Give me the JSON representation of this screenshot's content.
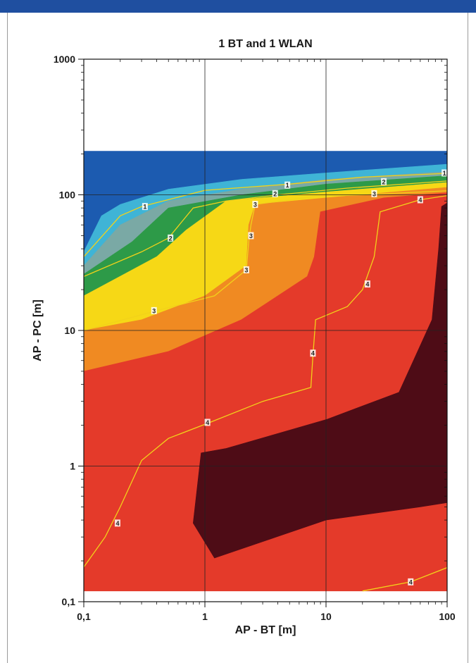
{
  "chart_data": {
    "type": "heatmap",
    "title": "1 BT and 1 WLAN",
    "xlabel": "AP - BT [m]",
    "ylabel": "AP - PC [m]",
    "xscale": "log",
    "yscale": "log",
    "xlim": [
      0.1,
      100
    ],
    "ylim": [
      0.1,
      1000
    ],
    "xticks": [
      "0,1",
      "1",
      "10",
      "100"
    ],
    "yticks": [
      "0,1",
      "1",
      "10",
      "100",
      "1000"
    ],
    "grid": true,
    "data_region_y_max": 210,
    "regions": [
      {
        "name": "dark-blue",
        "color": "#1c5bb0",
        "points": [
          [
            0.1,
            210
          ],
          [
            120,
            210
          ],
          [
            120,
            170
          ],
          [
            0.1,
            38
          ]
        ]
      },
      {
        "name": "light-blue",
        "color": "#3fb4d6",
        "points": [
          [
            0.1,
            38
          ],
          [
            0.14,
            70
          ],
          [
            0.2,
            85
          ],
          [
            0.5,
            110
          ],
          [
            2,
            130
          ],
          [
            10,
            145
          ],
          [
            120,
            170
          ],
          [
            120,
            150
          ],
          [
            10,
            130
          ],
          [
            2,
            110
          ],
          [
            0.5,
            90
          ],
          [
            0.2,
            60
          ],
          [
            0.1,
            30
          ]
        ]
      },
      {
        "name": "teal-gray",
        "color": "#7aa9a5",
        "points": [
          [
            0.1,
            30
          ],
          [
            0.2,
            60
          ],
          [
            0.5,
            90
          ],
          [
            2,
            110
          ],
          [
            10,
            130
          ],
          [
            120,
            150
          ],
          [
            120,
            140
          ],
          [
            10,
            120
          ],
          [
            2,
            100
          ],
          [
            0.5,
            80
          ],
          [
            0.25,
            45
          ],
          [
            0.1,
            26
          ]
        ]
      },
      {
        "name": "green",
        "color": "#2d9a48",
        "points": [
          [
            0.1,
            26
          ],
          [
            0.25,
            45
          ],
          [
            0.5,
            80
          ],
          [
            2,
            100
          ],
          [
            10,
            120
          ],
          [
            120,
            140
          ],
          [
            120,
            125
          ],
          [
            10,
            105
          ],
          [
            1.5,
            90
          ],
          [
            0.7,
            55
          ],
          [
            0.4,
            35
          ],
          [
            0.1,
            18
          ]
        ]
      },
      {
        "name": "yellow",
        "color": "#f6d816",
        "points": [
          [
            0.1,
            18
          ],
          [
            0.4,
            35
          ],
          [
            0.7,
            55
          ],
          [
            1.5,
            90
          ],
          [
            10,
            105
          ],
          [
            120,
            125
          ],
          [
            120,
            115
          ],
          [
            10,
            95
          ],
          [
            2.6,
            85
          ],
          [
            2.3,
            60
          ],
          [
            2.2,
            30
          ],
          [
            1,
            18
          ],
          [
            0.3,
            12
          ],
          [
            0.1,
            10
          ]
        ]
      },
      {
        "name": "orange",
        "color": "#f08a22",
        "points": [
          [
            0.1,
            10
          ],
          [
            0.3,
            12
          ],
          [
            1,
            18
          ],
          [
            2.2,
            30
          ],
          [
            2.3,
            60
          ],
          [
            2.6,
            85
          ],
          [
            10,
            95
          ],
          [
            120,
            115
          ],
          [
            120,
            105
          ],
          [
            30,
            95
          ],
          [
            9,
            75
          ],
          [
            8,
            35
          ],
          [
            7,
            25
          ],
          [
            2,
            12
          ],
          [
            0.5,
            7
          ],
          [
            0.1,
            5
          ]
        ]
      },
      {
        "name": "red",
        "color": "#e43a2a",
        "points": [
          [
            0.1,
            5
          ],
          [
            0.5,
            7
          ],
          [
            2,
            12
          ],
          [
            7,
            25
          ],
          [
            8,
            35
          ],
          [
            9,
            75
          ],
          [
            30,
            95
          ],
          [
            120,
            105
          ],
          [
            120,
            0.12
          ],
          [
            0.1,
            0.12
          ]
        ]
      },
      {
        "name": "dark-red",
        "color": "#4e0c16",
        "points": [
          [
            0.93,
            1.25
          ],
          [
            1.5,
            1.35
          ],
          [
            10,
            2.2
          ],
          [
            40,
            3.5
          ],
          [
            75,
            12
          ],
          [
            85,
            40
          ],
          [
            90,
            82
          ],
          [
            110,
            92
          ],
          [
            118,
            90
          ],
          [
            118,
            0.55
          ],
          [
            60,
            0.5
          ],
          [
            10,
            0.4
          ],
          [
            1.2,
            0.21
          ],
          [
            0.8,
            0.38
          ]
        ]
      }
    ],
    "contour_lines": [
      {
        "name": "4",
        "color": "#f2d21a",
        "points": [
          [
            0.1,
            0.18
          ],
          [
            0.15,
            0.3
          ],
          [
            0.2,
            0.5
          ],
          [
            0.3,
            1.1
          ],
          [
            0.5,
            1.6
          ],
          [
            1.1,
            2.1
          ],
          [
            3,
            3
          ],
          [
            7.5,
            3.8
          ],
          [
            7.8,
            6.5
          ],
          [
            8.2,
            12
          ],
          [
            15,
            15
          ],
          [
            20,
            20
          ],
          [
            25,
            35
          ],
          [
            28,
            75
          ],
          [
            60,
            92
          ],
          [
            110,
            100
          ]
        ]
      },
      {
        "name": "4",
        "color": "#f2d21a",
        "points": [
          [
            20,
            0.12
          ],
          [
            50,
            0.14
          ],
          [
            120,
            0.19
          ]
        ]
      },
      {
        "name": "3",
        "color": "#f2d21a",
        "points": [
          [
            0.1,
            10
          ],
          [
            0.4,
            14
          ],
          [
            1.2,
            18
          ],
          [
            2.2,
            28
          ],
          [
            2.3,
            45
          ],
          [
            2.4,
            60
          ],
          [
            2.6,
            85
          ],
          [
            8,
            97
          ],
          [
            20,
            100
          ],
          [
            120,
            108
          ]
        ]
      },
      {
        "name": "2",
        "color": "#f2d21a",
        "points": [
          [
            0.1,
            25
          ],
          [
            0.3,
            38
          ],
          [
            0.5,
            48
          ],
          [
            0.8,
            80
          ],
          [
            1.5,
            90
          ],
          [
            4,
            100
          ],
          [
            15,
            112
          ],
          [
            120,
            128
          ]
        ]
      },
      {
        "name": "1",
        "color": "#f2d21a",
        "points": [
          [
            0.1,
            35
          ],
          [
            0.2,
            70
          ],
          [
            0.3,
            82
          ],
          [
            1,
            108
          ],
          [
            5,
            120
          ],
          [
            20,
            135
          ],
          [
            120,
            145
          ]
        ]
      }
    ],
    "contour_label_values": [
      "1",
      "2",
      "3",
      "4"
    ],
    "contour_labels": [
      {
        "text": "1",
        "x": 0.32,
        "y": 82
      },
      {
        "text": "1",
        "x": 4.8,
        "y": 118
      },
      {
        "text": "1",
        "x": 95,
        "y": 145
      },
      {
        "text": "2",
        "x": 0.52,
        "y": 48
      },
      {
        "text": "2",
        "x": 3.8,
        "y": 102
      },
      {
        "text": "2",
        "x": 30,
        "y": 125
      },
      {
        "text": "3",
        "x": 0.38,
        "y": 14
      },
      {
        "text": "3",
        "x": 2.2,
        "y": 28
      },
      {
        "text": "3",
        "x": 2.4,
        "y": 50
      },
      {
        "text": "3",
        "x": 2.6,
        "y": 85
      },
      {
        "text": "3",
        "x": 25,
        "y": 102
      },
      {
        "text": "4",
        "x": 0.19,
        "y": 0.38
      },
      {
        "text": "4",
        "x": 1.05,
        "y": 2.1
      },
      {
        "text": "4",
        "x": 7.8,
        "y": 6.8
      },
      {
        "text": "4",
        "x": 22,
        "y": 22
      },
      {
        "text": "4",
        "x": 60,
        "y": 92
      },
      {
        "text": "4",
        "x": 50,
        "y": 0.14
      }
    ]
  }
}
